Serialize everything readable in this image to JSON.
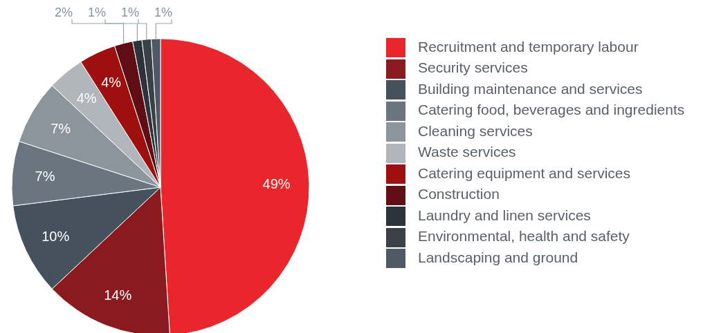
{
  "chart_data": {
    "type": "pie",
    "categories": [
      "Recruitment and temporary labour",
      "Security services",
      "Building maintenance and services",
      "Catering food, beverages and ingredients",
      "Cleaning services",
      "Waste services",
      "Catering equipment and services",
      "Construction",
      "Laundry and linen services",
      "Environmental, health and safety",
      "Landscaping and ground"
    ],
    "values": [
      49,
      14,
      10,
      7,
      7,
      4,
      4,
      2,
      1,
      1,
      1
    ],
    "value_labels": [
      "49%",
      "14%",
      "10%",
      "7%",
      "7%",
      "4%",
      "4%",
      "2%",
      "1%",
      "1%",
      "1%"
    ],
    "colors": [
      "#e8262b",
      "#8b1a1f",
      "#45515c",
      "#6b7580",
      "#8c959c",
      "#b0b6bb",
      "#9e1010",
      "#5e0e14",
      "#2b333b",
      "#3a4048",
      "#505a64"
    ],
    "legend": "right"
  }
}
